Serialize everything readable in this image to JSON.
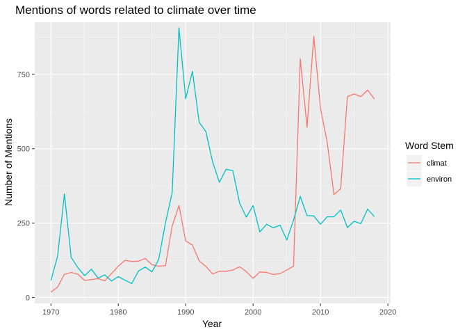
{
  "chart_data": {
    "type": "line",
    "title": "Mentions of words related to climate over time",
    "xlabel": "Year",
    "ylabel": "Number of Mentions",
    "xlim": [
      1967.6,
      2020.4
    ],
    "ylim": [
      -20,
      925
    ],
    "x_ticks": [
      1970,
      1980,
      1990,
      2000,
      2010,
      2020
    ],
    "y_ticks": [
      0,
      250,
      500,
      750
    ],
    "grid": true,
    "legend": {
      "title": "Word Stem",
      "position": "right"
    },
    "x": [
      1970,
      1971,
      1972,
      1973,
      1974,
      1975,
      1976,
      1977,
      1978,
      1979,
      1980,
      1981,
      1982,
      1983,
      1984,
      1985,
      1986,
      1987,
      1988,
      1989,
      1990,
      1991,
      1992,
      1993,
      1994,
      1995,
      1996,
      1997,
      1998,
      1999,
      2000,
      2001,
      2002,
      2003,
      2004,
      2005,
      2006,
      2007,
      2008,
      2009,
      2010,
      2011,
      2012,
      2013,
      2014,
      2015,
      2016,
      2017,
      2018
    ],
    "series": [
      {
        "name": "climat",
        "color": "#F8766D",
        "values": [
          18,
          35,
          78,
          84,
          78,
          57,
          60,
          63,
          56,
          80,
          105,
          125,
          121,
          122,
          131,
          110,
          105,
          107,
          240,
          309,
          190,
          176,
          123,
          104,
          79,
          88,
          88,
          92,
          103,
          87,
          64,
          86,
          84,
          77,
          80,
          92,
          105,
          802,
          572,
          878,
          635,
          522,
          346,
          365,
          675,
          684,
          675,
          697,
          667
        ]
      },
      {
        "name": "environ",
        "color": "#00BFC4",
        "values": [
          57,
          140,
          348,
          135,
          100,
          73,
          95,
          65,
          76,
          55,
          70,
          58,
          47,
          89,
          102,
          86,
          128,
          251,
          353,
          906,
          668,
          760,
          589,
          557,
          455,
          387,
          431,
          426,
          317,
          270,
          309,
          220,
          246,
          234,
          243,
          193,
          260,
          340,
          275,
          274,
          246,
          271,
          271,
          294,
          235,
          256,
          248,
          297,
          272
        ]
      }
    ]
  }
}
